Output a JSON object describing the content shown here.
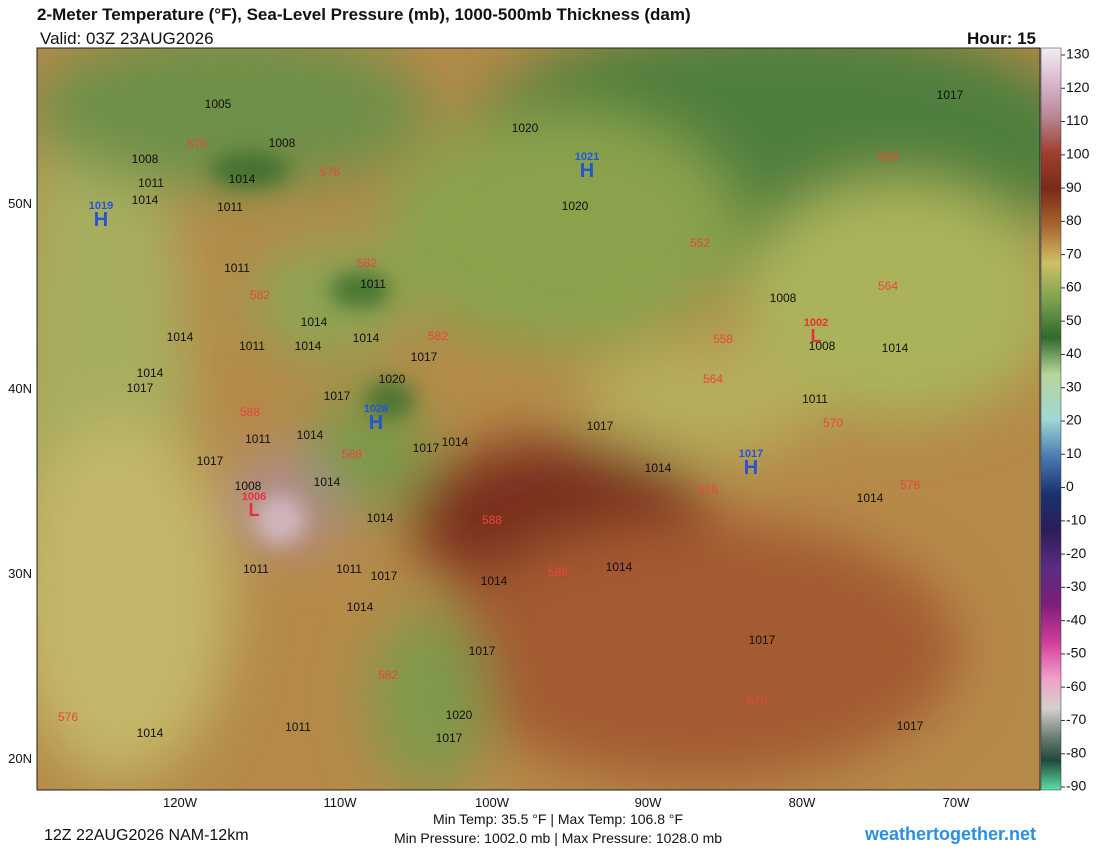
{
  "header": {
    "title": "2-Meter Temperature (°F), Sea-Level Pressure (mb), 1000-500mb Thickness (dam)",
    "valid": "Valid: 03Z 23AUG2026",
    "hour": "Hour: 15"
  },
  "map": {
    "longitude_labels": [
      "120W",
      "110W",
      "100W",
      "90W",
      "80W",
      "70W"
    ],
    "latitude_labels": [
      "50N",
      "40N",
      "30N",
      "20N"
    ],
    "isobar_labels": [
      "1005",
      "1008",
      "1008",
      "1014",
      "1011",
      "1014",
      "1011",
      "1011",
      "1011",
      "1014",
      "1014",
      "1011",
      "1014",
      "1014",
      "1017",
      "1014",
      "1017",
      "1020",
      "1017",
      "1014",
      "1011",
      "1017",
      "1014",
      "1017",
      "1011",
      "1014",
      "1014",
      "1008",
      "1014",
      "1011",
      "1011",
      "1017",
      "1014",
      "1014",
      "1014",
      "1017",
      "1017",
      "1020",
      "1017",
      "1011",
      "1014",
      "1017",
      "1014",
      "1014",
      "1008",
      "1008",
      "1017",
      "1020",
      "1020",
      "1017"
    ],
    "thickness_labels": [
      "570",
      "576",
      "582",
      "582",
      "582",
      "588",
      "588",
      "588",
      "588",
      "582",
      "576",
      "570",
      "576",
      "576",
      "570",
      "564",
      "558",
      "552",
      "558",
      "564"
    ],
    "highs": [
      {
        "letter": "H",
        "value": "1021"
      },
      {
        "letter": "H",
        "value": "1019"
      },
      {
        "letter": "H",
        "value": "1028"
      },
      {
        "letter": "H",
        "value": "1017"
      }
    ],
    "lows": [
      {
        "letter": "L",
        "value": "1006"
      },
      {
        "letter": "L",
        "value": "1002"
      }
    ]
  },
  "colorbar": {
    "range": [
      -90,
      130
    ],
    "ticks": [
      130,
      120,
      110,
      100,
      90,
      80,
      70,
      60,
      50,
      40,
      30,
      20,
      10,
      0,
      -10,
      -20,
      -30,
      -40,
      -50,
      -60,
      -70,
      -80,
      -90
    ]
  },
  "footer": {
    "run": "12Z 22AUG2026 NAM-12km",
    "temps": "Min Temp:  35.5 °F | Max Temp: 106.8 °F",
    "pressures": "Min Pressure: 1002.0 mb | Max Pressure: 1028.0 mb",
    "site": "weathertogether.net"
  }
}
